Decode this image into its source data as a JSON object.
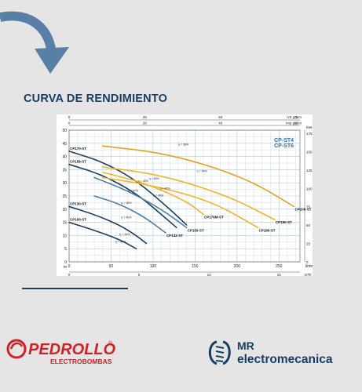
{
  "page": {
    "heading": "CURVA DE RENDIMIENTO",
    "brand_left": {
      "name": "PEDROLLO",
      "registered": "®",
      "sub": "ELECTROBOMBAS"
    },
    "brand_right": {
      "line1": "MR",
      "line2": "electromecanica"
    },
    "icons": [
      "curved-arrow-icon",
      "pedrollo-swirl-icon",
      "wrench-screw-icon"
    ],
    "colors": {
      "navy": "#1a3e62",
      "yellow": "#f0b429",
      "gold": "#e3a21b",
      "steel": "#4e7ea8",
      "grid": "#b5c7d8",
      "arrow": "#5a7fa6",
      "red": "#d12128"
    }
  },
  "chart_data": {
    "type": "line",
    "title": "CP-ST4\nCP-ST6",
    "xlabel": "l/min",
    "ylabel": "m",
    "xlim": [
      0,
      275
    ],
    "ylim": [
      0,
      50
    ],
    "x_ticks": [
      0,
      50,
      100,
      150,
      200,
      250
    ],
    "y_ticks": [
      0,
      5,
      10,
      15,
      20,
      25,
      30,
      35,
      40,
      45,
      50
    ],
    "top_axis": {
      "unit_label": "US g.p.m",
      "unit_label2": "Imp g.p.m",
      "ticks_top": [
        "0",
        "25",
        "50",
        "75"
      ],
      "ticks_inner": [
        "0",
        "20",
        "40",
        "60"
      ]
    },
    "bottom_axis2": {
      "unit_label": "m³/h",
      "ticks": [
        "0",
        "5",
        "10",
        "15"
      ]
    },
    "right_axis": {
      "unit_label": "feet",
      "ticks": [
        "0",
        "25",
        "50",
        "75",
        "100",
        "125",
        "150",
        "175"
      ]
    },
    "series": [
      {
        "name": "CP170-ST",
        "color": "#1a3e62",
        "side": "left",
        "x": [
          0,
          40,
          80,
          120,
          140
        ],
        "y": [
          42,
          38,
          31,
          20,
          14
        ]
      },
      {
        "name": "CP158-ST",
        "color": "#1a3e62",
        "side": "left",
        "x": [
          0,
          40,
          80,
          110,
          128
        ],
        "y": [
          37,
          33,
          26,
          18,
          13
        ]
      },
      {
        "name": "CP130-ST",
        "color": "#1a3e62",
        "side": "left",
        "x": [
          0,
          30,
          60,
          80,
          92
        ],
        "y": [
          21,
          18,
          14,
          10,
          7
        ]
      },
      {
        "name": "CP100-ST",
        "color": "#1a3e62",
        "side": "left",
        "x": [
          0,
          30,
          60,
          80
        ],
        "y": [
          15,
          12,
          8.5,
          5
        ]
      },
      {
        "name": "CP132-ST",
        "color": "#4e7ea8",
        "side": "right",
        "x": [
          30,
          60,
          90,
          115
        ],
        "y": [
          25,
          22,
          17,
          11
        ]
      },
      {
        "name": "CP150-ST",
        "color": "#4e7ea8",
        "side": "right",
        "x": [
          30,
          70,
          110,
          140
        ],
        "y": [
          32,
          27,
          20,
          13
        ]
      },
      {
        "name": "CP176M-ST",
        "color": "#f0b429",
        "side": "right",
        "x": [
          40,
          90,
          140,
          160
        ],
        "y": [
          34,
          30,
          23,
          18
        ]
      },
      {
        "name": "CP180-ST",
        "color": "#f0b429",
        "side": "right",
        "x": [
          40,
          100,
          170,
          225
        ],
        "y": [
          32,
          29,
          23,
          13
        ]
      },
      {
        "name": "CP190-ST",
        "color": "#f0b429",
        "side": "right",
        "x": [
          40,
          110,
          190,
          245
        ],
        "y": [
          36,
          33,
          25,
          16
        ]
      },
      {
        "name": "CP200-ST",
        "color": "#e3a21b",
        "side": "right",
        "x": [
          40,
          120,
          210,
          268
        ],
        "y": [
          44,
          41,
          32,
          21
        ]
      }
    ],
    "annotations": [
      "η = 40%",
      "η = 44%",
      "η = 40%",
      "η = 38%",
      "η = 47%",
      "η = 43%",
      "η = 48%",
      "η = 46%",
      "η = 54%",
      "η = 58%",
      "η = 53%"
    ]
  }
}
